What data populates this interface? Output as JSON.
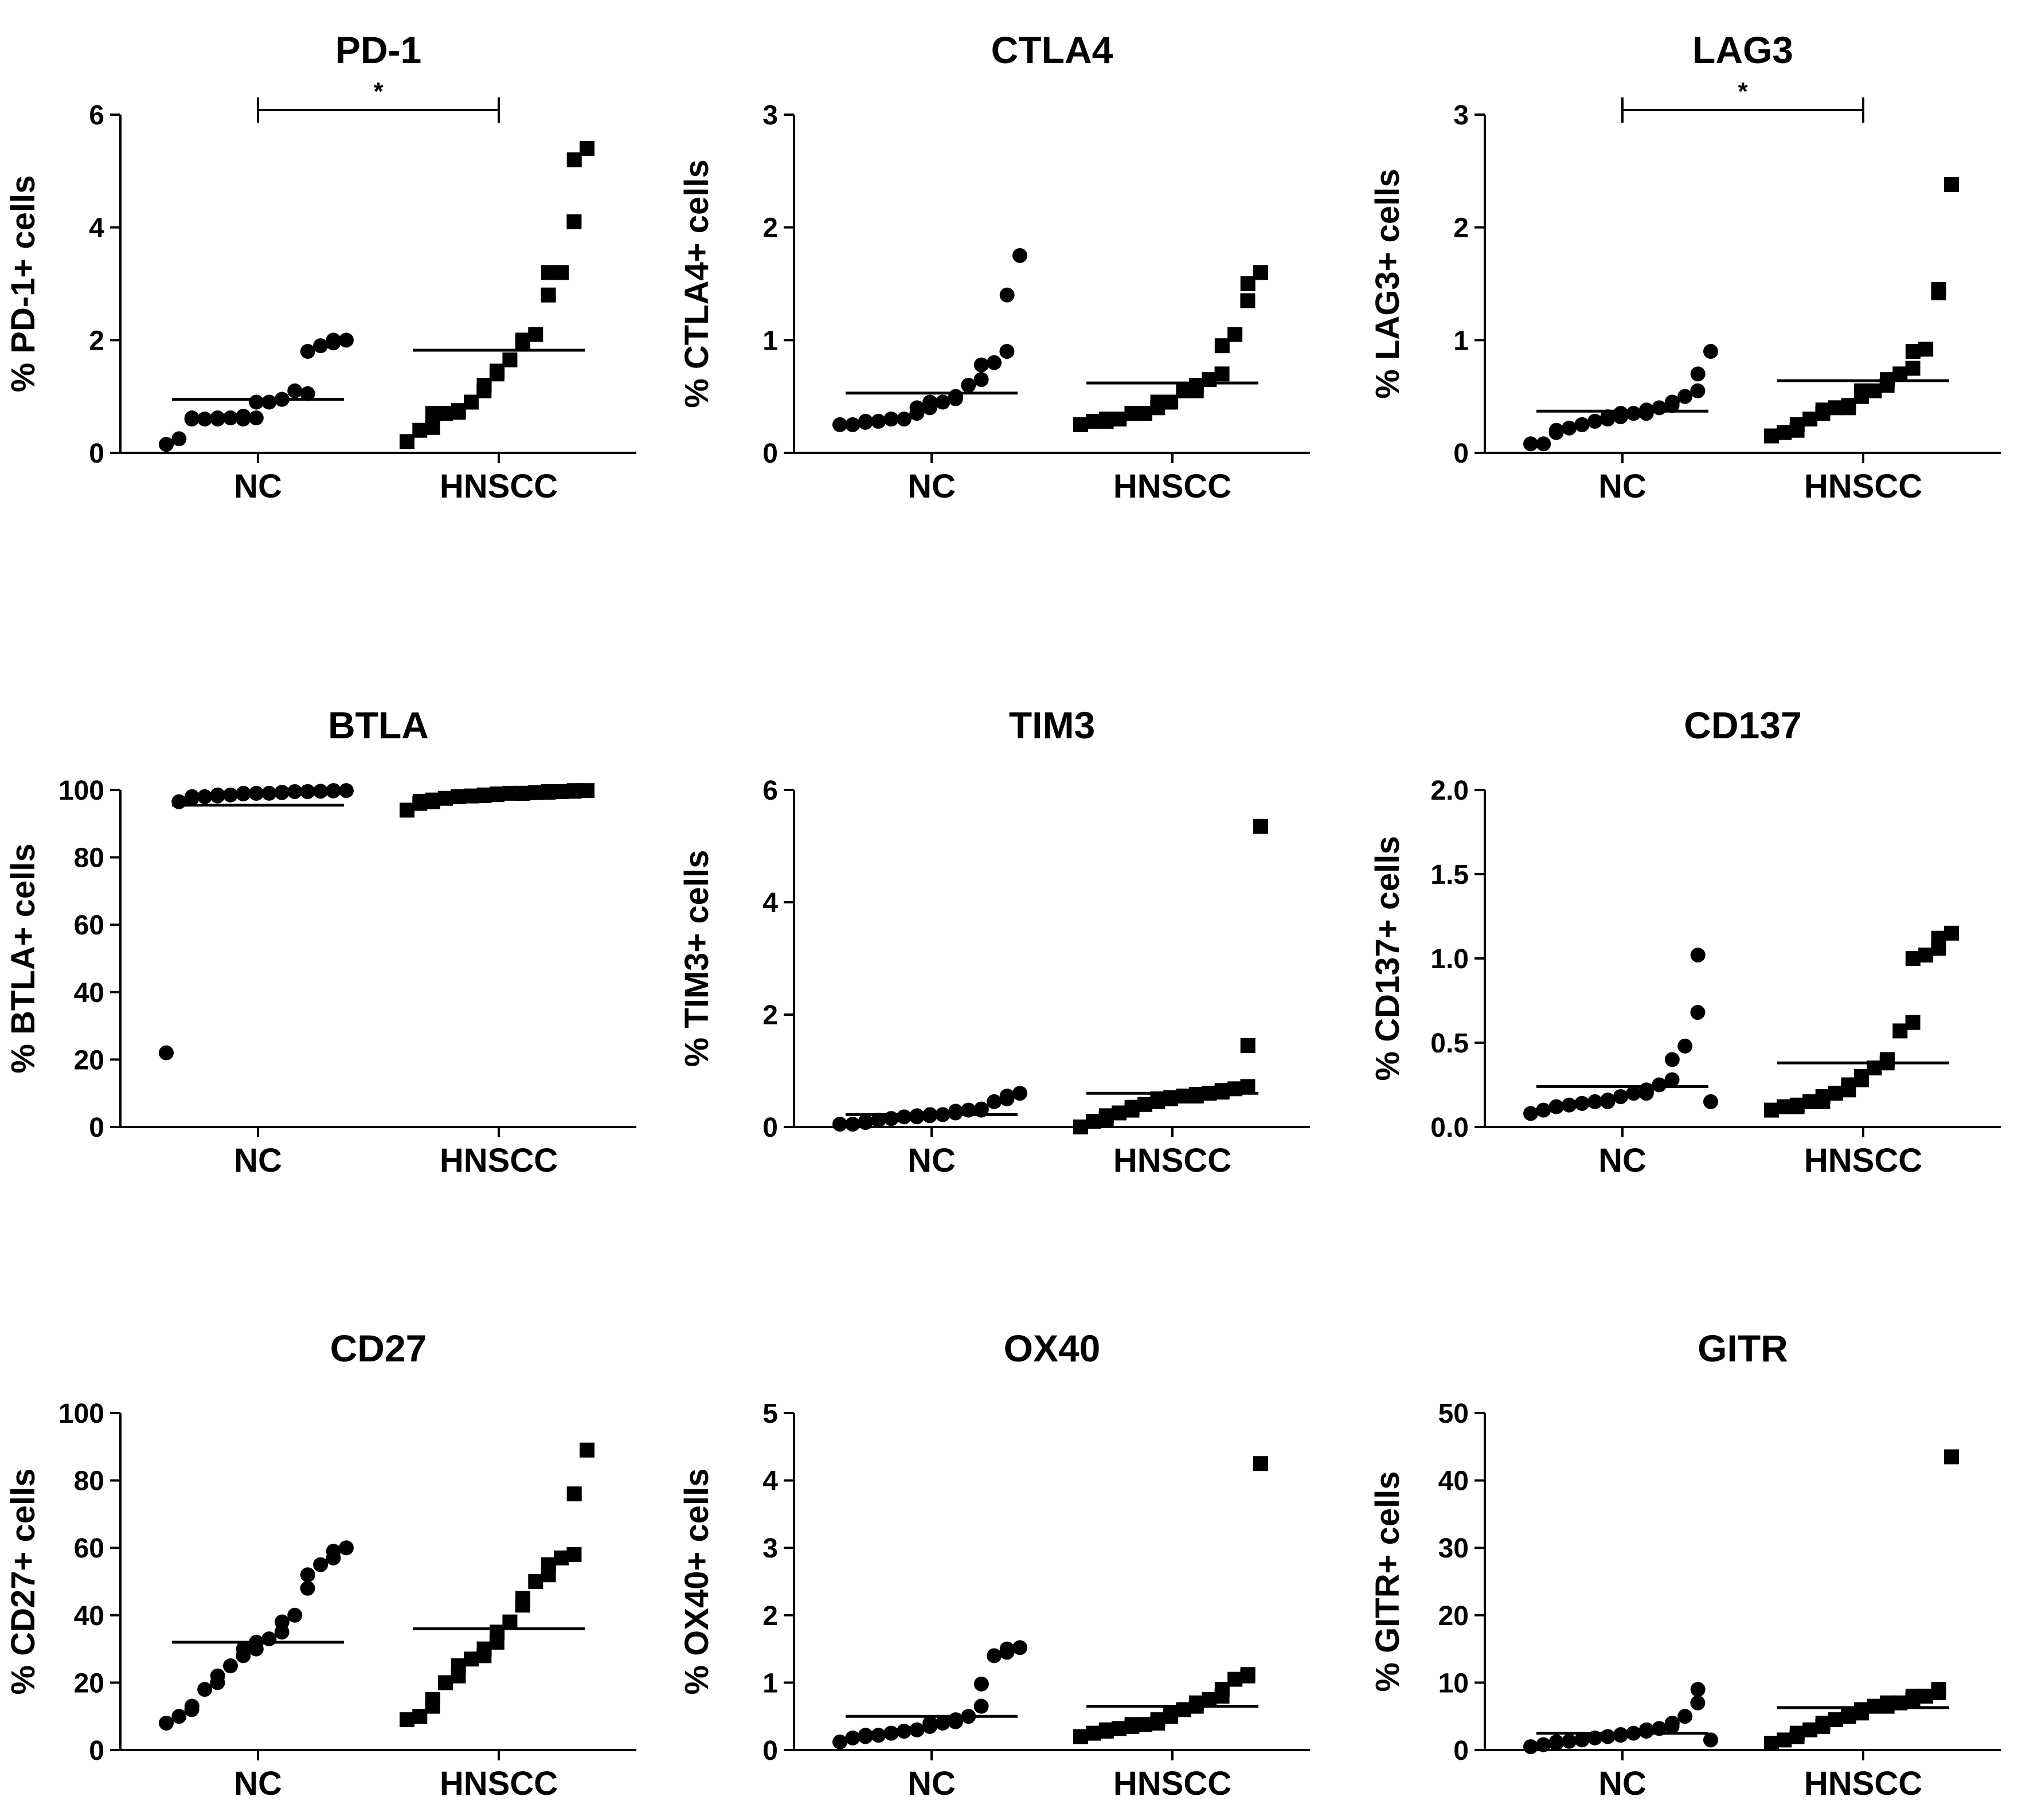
{
  "chart_data": [
    {
      "type": "scatter",
      "title": "PD-1",
      "ylabel": "% PD-1+ cells",
      "ylim": [
        0,
        6
      ],
      "yticks": [
        0,
        2,
        4,
        6
      ],
      "categories": [
        "NC",
        "HNSCC"
      ],
      "series": [
        {
          "name": "NC",
          "marker": "circle",
          "mean": 0.95,
          "values": [
            0.15,
            0.25,
            0.6,
            0.62,
            0.6,
            0.62,
            0.6,
            0.62,
            0.6,
            0.65,
            0.62,
            0.9,
            0.9,
            0.95,
            0.95,
            1.1,
            1.05,
            1.8,
            1.9,
            1.95,
            2.0,
            2.0
          ]
        },
        {
          "name": "HNSCC",
          "marker": "square",
          "mean": 1.82,
          "values": [
            0.2,
            0.4,
            0.45,
            0.7,
            0.7,
            0.72,
            0.75,
            0.9,
            1.1,
            1.2,
            1.4,
            1.45,
            1.65,
            1.95,
            2.0,
            2.1,
            2.8,
            3.2,
            3.2,
            4.1,
            5.2,
            5.4
          ]
        }
      ],
      "significance": {
        "label": "*",
        "between": [
          "NC",
          "HNSCC"
        ],
        "y": 6
      }
    },
    {
      "type": "scatter",
      "title": "CTLA4",
      "ylabel": "% CTLA4+ cells",
      "ylim": [
        0,
        3
      ],
      "yticks": [
        0,
        1,
        2,
        3
      ],
      "categories": [
        "NC",
        "HNSCC"
      ],
      "series": [
        {
          "name": "NC",
          "marker": "circle",
          "mean": 0.53,
          "values": [
            0.25,
            0.25,
            0.27,
            0.28,
            0.28,
            0.3,
            0.3,
            0.3,
            0.35,
            0.4,
            0.4,
            0.45,
            0.45,
            0.48,
            0.5,
            0.6,
            0.65,
            0.78,
            0.8,
            0.9,
            1.4,
            1.75
          ]
        },
        {
          "name": "HNSCC",
          "marker": "square",
          "mean": 0.62,
          "values": [
            0.25,
            0.28,
            0.28,
            0.3,
            0.3,
            0.35,
            0.35,
            0.35,
            0.4,
            0.45,
            0.45,
            0.45,
            0.55,
            0.55,
            0.6,
            0.65,
            0.7,
            0.95,
            1.05,
            1.35,
            1.5,
            1.6
          ]
        }
      ]
    },
    {
      "type": "scatter",
      "title": "LAG3",
      "ylabel": "% LAG3+ cells",
      "ylim": [
        0,
        3
      ],
      "yticks": [
        0,
        1,
        2,
        3
      ],
      "categories": [
        "NC",
        "HNSCC"
      ],
      "series": [
        {
          "name": "NC",
          "marker": "circle",
          "mean": 0.37,
          "values": [
            0.08,
            0.08,
            0.18,
            0.2,
            0.22,
            0.25,
            0.25,
            0.28,
            0.3,
            0.32,
            0.32,
            0.35,
            0.35,
            0.35,
            0.38,
            0.4,
            0.42,
            0.45,
            0.5,
            0.55,
            0.7,
            0.9
          ]
        },
        {
          "name": "HNSCC",
          "marker": "square",
          "mean": 0.64,
          "values": [
            0.15,
            0.18,
            0.2,
            0.25,
            0.3,
            0.35,
            0.38,
            0.4,
            0.4,
            0.42,
            0.5,
            0.55,
            0.55,
            0.6,
            0.65,
            0.7,
            0.75,
            0.9,
            0.92,
            1.42,
            1.45,
            2.38
          ]
        }
      ],
      "significance": {
        "label": "*",
        "between": [
          "NC",
          "HNSCC"
        ],
        "y": 3
      }
    },
    {
      "type": "scatter",
      "title": "BTLA",
      "ylabel": "% BTLA+ cells",
      "ylim": [
        0,
        100
      ],
      "yticks": [
        0,
        20,
        40,
        60,
        80,
        100
      ],
      "categories": [
        "NC",
        "HNSCC"
      ],
      "series": [
        {
          "name": "NC",
          "marker": "circle",
          "mean": 95.5,
          "values": [
            22,
            96.5,
            97.5,
            98,
            98,
            98.2,
            98.5,
            98.5,
            98.8,
            99,
            99,
            99,
            99,
            99.2,
            99.3,
            99.5,
            99.5,
            99.5,
            99.6,
            99.7,
            99.8,
            99.8
          ]
        },
        {
          "name": "HNSCC",
          "marker": "square",
          "mean": 98.4,
          "values": [
            94,
            96,
            96.5,
            97,
            97.5,
            98,
            98,
            98.2,
            98.3,
            98.5,
            98.6,
            98.8,
            99,
            99,
            99,
            99.2,
            99.3,
            99.5,
            99.5,
            99.6,
            99.8,
            99.8
          ]
        }
      ]
    },
    {
      "type": "scatter",
      "title": "TIM3",
      "ylabel": "% TIM3+ cells",
      "ylim": [
        0,
        6
      ],
      "yticks": [
        0,
        2,
        4,
        6
      ],
      "categories": [
        "NC",
        "HNSCC"
      ],
      "series": [
        {
          "name": "NC",
          "marker": "circle",
          "mean": 0.22,
          "values": [
            0.05,
            0.05,
            0.08,
            0.1,
            0.12,
            0.15,
            0.15,
            0.18,
            0.18,
            0.2,
            0.2,
            0.22,
            0.22,
            0.25,
            0.28,
            0.3,
            0.3,
            0.32,
            0.45,
            0.5,
            0.55,
            0.6
          ]
        },
        {
          "name": "HNSCC",
          "marker": "square",
          "mean": 0.6,
          "values": [
            0.0,
            0.1,
            0.15,
            0.2,
            0.25,
            0.3,
            0.35,
            0.4,
            0.45,
            0.5,
            0.5,
            0.52,
            0.55,
            0.55,
            0.58,
            0.6,
            0.62,
            0.65,
            0.68,
            0.72,
            1.45,
            5.35
          ]
        }
      ]
    },
    {
      "type": "scatter",
      "title": "CD137",
      "ylabel": "% CD137+ cells",
      "ylim": [
        0,
        2.0
      ],
      "yticks": [
        0.0,
        0.5,
        1.0,
        1.5,
        2.0
      ],
      "categories": [
        "NC",
        "HNSCC"
      ],
      "series": [
        {
          "name": "NC",
          "marker": "circle",
          "mean": 0.24,
          "values": [
            0.08,
            0.1,
            0.12,
            0.12,
            0.13,
            0.14,
            0.14,
            0.15,
            0.15,
            0.16,
            0.18,
            0.18,
            0.2,
            0.2,
            0.22,
            0.25,
            0.28,
            0.4,
            0.48,
            0.68,
            1.02,
            0.15
          ]
        },
        {
          "name": "HNSCC",
          "marker": "square",
          "mean": 0.38,
          "values": [
            0.1,
            0.12,
            0.12,
            0.13,
            0.15,
            0.15,
            0.18,
            0.2,
            0.22,
            0.25,
            0.28,
            0.3,
            0.35,
            0.38,
            0.4,
            0.57,
            0.62,
            1.0,
            1.02,
            1.06,
            1.12,
            1.15
          ]
        }
      ]
    },
    {
      "type": "scatter",
      "title": "CD27",
      "ylabel": "% CD27+ cells",
      "ylim": [
        0,
        100
      ],
      "yticks": [
        0,
        20,
        40,
        60,
        80,
        100
      ],
      "categories": [
        "NC",
        "HNSCC"
      ],
      "series": [
        {
          "name": "NC",
          "marker": "circle",
          "mean": 32,
          "values": [
            8,
            10,
            12,
            13,
            18,
            20,
            22,
            25,
            28,
            30,
            30,
            32,
            33,
            35,
            38,
            40,
            48,
            52,
            55,
            57,
            59,
            60
          ]
        },
        {
          "name": "HNSCC",
          "marker": "square",
          "mean": 36,
          "values": [
            9,
            10,
            13,
            15,
            20,
            22,
            25,
            27,
            28,
            30,
            32,
            35,
            38,
            43,
            45,
            50,
            52,
            55,
            57,
            58,
            76,
            89
          ]
        }
      ]
    },
    {
      "type": "scatter",
      "title": "OX40",
      "ylabel": "% OX40+ cells",
      "ylim": [
        0,
        5
      ],
      "yticks": [
        0,
        1,
        2,
        3,
        4,
        5
      ],
      "categories": [
        "NC",
        "HNSCC"
      ],
      "series": [
        {
          "name": "NC",
          "marker": "circle",
          "mean": 0.5,
          "values": [
            0.12,
            0.18,
            0.2,
            0.22,
            0.22,
            0.25,
            0.25,
            0.28,
            0.3,
            0.3,
            0.35,
            0.4,
            0.4,
            0.42,
            0.45,
            0.5,
            0.65,
            0.98,
            1.4,
            1.45,
            1.5,
            1.52
          ]
        },
        {
          "name": "HNSCC",
          "marker": "square",
          "mean": 0.65,
          "values": [
            0.2,
            0.25,
            0.28,
            0.3,
            0.32,
            0.35,
            0.38,
            0.38,
            0.4,
            0.45,
            0.5,
            0.55,
            0.6,
            0.65,
            0.7,
            0.75,
            0.8,
            0.9,
            1.05,
            1.1,
            1.12,
            4.25
          ]
        }
      ]
    },
    {
      "type": "scatter",
      "title": "GITR",
      "ylabel": "% GITR+ cells",
      "ylim": [
        0,
        50
      ],
      "yticks": [
        0,
        10,
        20,
        30,
        40,
        50
      ],
      "categories": [
        "NC",
        "HNSCC"
      ],
      "series": [
        {
          "name": "NC",
          "marker": "circle",
          "mean": 2.5,
          "values": [
            0.5,
            0.8,
            1.0,
            1.2,
            1.3,
            1.5,
            1.6,
            1.8,
            2.0,
            2.0,
            2.2,
            2.3,
            2.5,
            2.8,
            3.0,
            3.2,
            3.5,
            4.0,
            5.0,
            7.0,
            9.0,
            1.5
          ]
        },
        {
          "name": "HNSCC",
          "marker": "square",
          "mean": 6.3,
          "values": [
            1.0,
            1.5,
            2.0,
            2.5,
            3.0,
            3.5,
            4.0,
            4.5,
            5.0,
            5.0,
            5.5,
            6.0,
            6.5,
            6.5,
            7.0,
            7.0,
            7.5,
            8.0,
            8.0,
            8.5,
            9.0,
            43.5
          ]
        }
      ]
    }
  ]
}
